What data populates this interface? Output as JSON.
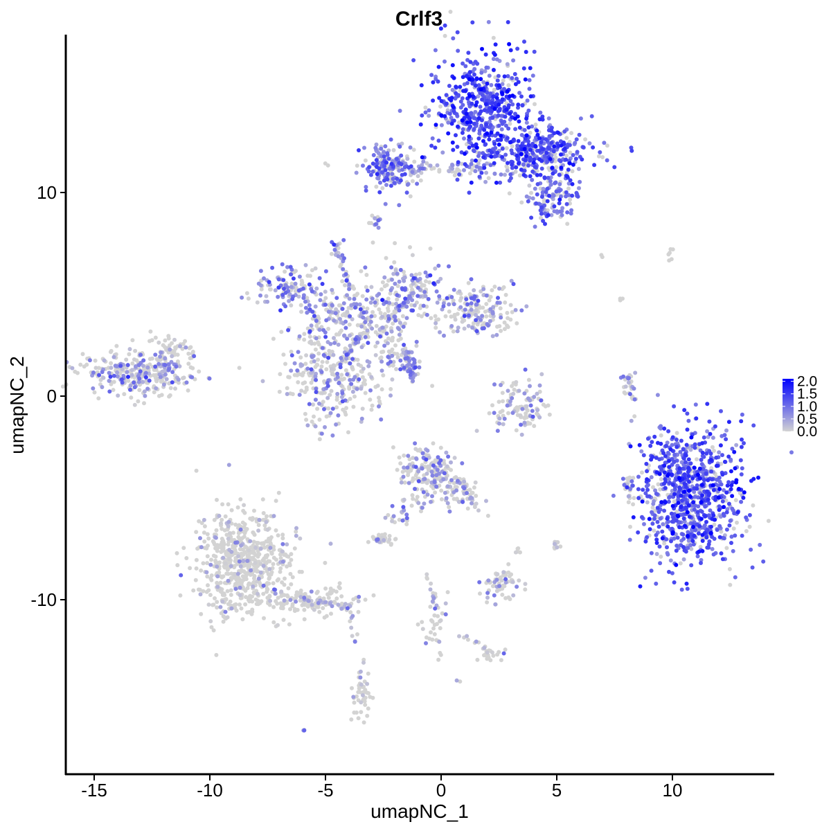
{
  "chart_data": {
    "type": "scatter",
    "title": "Crlf3",
    "xlabel": "umapNC_1",
    "ylabel": "umapNC_2",
    "xlim": [
      -16.5,
      14.3
    ],
    "ylim": [
      -17.8,
      17.5
    ],
    "x_ticks": [
      -15,
      -10,
      -5,
      0,
      5,
      10
    ],
    "x_tick_labels": [
      "-15",
      "-10",
      "-5",
      "0",
      "5",
      "10"
    ],
    "y_ticks": [
      -10,
      0,
      10
    ],
    "y_tick_labels": [
      "-10",
      "0",
      "10"
    ],
    "grid": false,
    "legend": {
      "placement": "right",
      "type": "colorbar",
      "ticks": [
        2.0,
        1.5,
        1.0,
        0.5,
        0.0
      ],
      "tick_labels": [
        "2.0",
        "1.5",
        "1.0",
        "0.5",
        "0.0"
      ],
      "range": [
        0.0,
        2.1
      ]
    },
    "color_scale": {
      "low": "#d3d3d3",
      "high": "#0000ff"
    },
    "clusters": [
      {
        "cx": 1.8,
        "cy": 14.2,
        "sx": 1.1,
        "sy": 1.4,
        "n": 520,
        "expr_mean": 1.3,
        "expr_frac": 0.9
      },
      {
        "cx": 4.3,
        "cy": 12.0,
        "sx": 1.1,
        "sy": 0.6,
        "n": 320,
        "expr_mean": 1.2,
        "expr_frac": 0.9
      },
      {
        "cx": 4.8,
        "cy": 9.8,
        "sx": 0.6,
        "sy": 0.6,
        "n": 120,
        "expr_mean": 0.9,
        "expr_frac": 0.75
      },
      {
        "cx": -2.2,
        "cy": 11.2,
        "sx": 0.6,
        "sy": 0.6,
        "n": 170,
        "expr_mean": 0.9,
        "expr_frac": 0.75
      },
      {
        "cx": 0.0,
        "cy": 11.2,
        "sx": 1.8,
        "sy": 0.25,
        "n": 90,
        "expr_mean": 0.6,
        "expr_frac": 0.5
      },
      {
        "cx": -2.8,
        "cy": 8.6,
        "sx": 0.15,
        "sy": 0.2,
        "n": 12,
        "expr_mean": 0.5,
        "expr_frac": 0.6
      },
      {
        "cx": -4.5,
        "cy": 7.3,
        "sx": 0.15,
        "sy": 0.25,
        "n": 15,
        "expr_mean": 0.7,
        "expr_frac": 0.7
      },
      {
        "cx": -6.5,
        "cy": 5.3,
        "sx": 0.8,
        "sy": 0.5,
        "n": 120,
        "expr_mean": 0.7,
        "expr_frac": 0.6
      },
      {
        "cx": -1.5,
        "cy": 5.0,
        "sx": 0.7,
        "sy": 0.9,
        "n": 160,
        "expr_mean": 0.7,
        "expr_frac": 0.6
      },
      {
        "cx": 1.5,
        "cy": 4.2,
        "sx": 0.8,
        "sy": 0.6,
        "n": 170,
        "expr_mean": 0.6,
        "expr_frac": 0.55
      },
      {
        "cx": -3.8,
        "cy": 3.8,
        "sx": 1.2,
        "sy": 0.8,
        "n": 220,
        "expr_mean": 0.5,
        "expr_frac": 0.45
      },
      {
        "cx": -4.8,
        "cy": 0.8,
        "sx": 1.0,
        "sy": 1.1,
        "n": 280,
        "expr_mean": 0.55,
        "expr_frac": 0.45
      },
      {
        "cx": -1.8,
        "cy": 1.8,
        "sx": 0.5,
        "sy": 0.6,
        "n": 50,
        "expr_mean": 0.5,
        "expr_frac": 0.45
      },
      {
        "cx": -13.0,
        "cy": 1.2,
        "sx": 1.2,
        "sy": 0.55,
        "n": 320,
        "expr_mean": 0.5,
        "expr_frac": 0.45
      },
      {
        "cx": -11.6,
        "cy": 2.3,
        "sx": 0.4,
        "sy": 0.3,
        "n": 40,
        "expr_mean": 0.4,
        "expr_frac": 0.3
      },
      {
        "cx": 3.4,
        "cy": -0.5,
        "sx": 0.6,
        "sy": 0.7,
        "n": 110,
        "expr_mean": 0.5,
        "expr_frac": 0.4
      },
      {
        "cx": 8.1,
        "cy": 0.3,
        "sx": 0.2,
        "sy": 0.5,
        "n": 18,
        "expr_mean": 0.5,
        "expr_frac": 0.5
      },
      {
        "cx": 10.8,
        "cy": -4.8,
        "sx": 1.15,
        "sy": 1.6,
        "n": 900,
        "expr_mean": 1.2,
        "expr_frac": 0.85
      },
      {
        "cx": 8.2,
        "cy": -4.5,
        "sx": 0.2,
        "sy": 0.4,
        "n": 25,
        "expr_mean": 0.4,
        "expr_frac": 0.4
      },
      {
        "cx": -0.6,
        "cy": -3.8,
        "sx": 0.6,
        "sy": 0.7,
        "n": 180,
        "expr_mean": 0.5,
        "expr_frac": 0.45
      },
      {
        "cx": 0.9,
        "cy": -4.8,
        "sx": 0.4,
        "sy": 0.5,
        "n": 50,
        "expr_mean": 0.4,
        "expr_frac": 0.4
      },
      {
        "cx": -2.5,
        "cy": -7.0,
        "sx": 0.3,
        "sy": 0.2,
        "n": 30,
        "expr_mean": 0.4,
        "expr_frac": 0.4
      },
      {
        "cx": -1.6,
        "cy": -6.0,
        "sx": 0.3,
        "sy": 0.4,
        "n": 15,
        "expr_mean": 0.5,
        "expr_frac": 0.5
      },
      {
        "cx": 2.4,
        "cy": -9.3,
        "sx": 0.5,
        "sy": 0.35,
        "n": 70,
        "expr_mean": 0.4,
        "expr_frac": 0.35
      },
      {
        "cx": 5.0,
        "cy": -7.3,
        "sx": 0.1,
        "sy": 0.15,
        "n": 10,
        "expr_mean": 0.3,
        "expr_frac": 0.3
      },
      {
        "cx": 3.3,
        "cy": -7.6,
        "sx": 0.1,
        "sy": 0.1,
        "n": 5,
        "expr_mean": 0.5,
        "expr_frac": 0.5
      },
      {
        "cx": -8.6,
        "cy": -8.3,
        "sx": 1.0,
        "sy": 1.3,
        "n": 650,
        "expr_mean": 0.3,
        "expr_frac": 0.15
      },
      {
        "cx": -5.6,
        "cy": -10.0,
        "sx": 0.9,
        "sy": 0.35,
        "n": 120,
        "expr_mean": 0.3,
        "expr_frac": 0.15
      },
      {
        "cx": -0.3,
        "cy": -11.1,
        "sx": 0.25,
        "sy": 0.7,
        "n": 35,
        "expr_mean": 0.3,
        "expr_frac": 0.25
      },
      {
        "cx": 2.2,
        "cy": -12.7,
        "sx": 0.3,
        "sy": 0.15,
        "n": 20,
        "expr_mean": 0.3,
        "expr_frac": 0.2
      },
      {
        "cx": -3.4,
        "cy": -14.7,
        "sx": 0.2,
        "sy": 0.6,
        "n": 40,
        "expr_mean": 0.3,
        "expr_frac": 0.2
      },
      {
        "cx": -6.0,
        "cy": -16.4,
        "sx": 0.05,
        "sy": 0.05,
        "n": 3,
        "expr_mean": 0.7,
        "expr_frac": 0.9
      },
      {
        "cx": 9.8,
        "cy": 6.8,
        "sx": 0.15,
        "sy": 0.15,
        "n": 6,
        "expr_mean": 0.1,
        "expr_frac": 0.1
      },
      {
        "cx": 7.8,
        "cy": 4.8,
        "sx": 0.1,
        "sy": 0.1,
        "n": 3,
        "expr_mean": 0.3,
        "expr_frac": 0.3
      },
      {
        "cx": 7.0,
        "cy": 6.9,
        "sx": 0.05,
        "sy": 0.05,
        "n": 2,
        "expr_mean": 0.3,
        "expr_frac": 0.3
      },
      {
        "cx": 0.7,
        "cy": -14.0,
        "sx": 0.05,
        "sy": 0.05,
        "n": 2,
        "expr_mean": 0.5,
        "expr_frac": 0.5
      }
    ],
    "trails": [
      {
        "from": [
          -1.6,
          2.0
        ],
        "to": [
          -1.2,
          0.7
        ],
        "n": 25,
        "expr_mean": 0.8
      },
      {
        "from": [
          -1.5,
          2.0
        ],
        "to": [
          -1.1,
          0.8
        ],
        "n": 15,
        "expr_mean": 0.8
      },
      {
        "from": [
          -4.4,
          6.8
        ],
        "to": [
          -3.7,
          4.4
        ],
        "n": 20,
        "expr_mean": 0.6
      },
      {
        "from": [
          -2.6,
          3.2
        ],
        "to": [
          -1.0,
          5.5
        ],
        "n": 30,
        "expr_mean": 0.7
      },
      {
        "from": [
          -3.5,
          3.0
        ],
        "to": [
          -4.2,
          1.8
        ],
        "n": 25,
        "expr_mean": 0.7
      },
      {
        "from": [
          -1.3,
          1.9
        ],
        "to": [
          -1.0,
          1.3
        ],
        "n": 10,
        "expr_mean": 0.8
      },
      {
        "from": [
          0.8,
          -4.0
        ],
        "to": [
          1.4,
          -5.4
        ],
        "n": 20,
        "expr_mean": 0.5
      },
      {
        "from": [
          -1.6,
          -5.0
        ],
        "to": [
          -1.6,
          -6.2
        ],
        "n": 8,
        "expr_mean": 0.5
      },
      {
        "from": [
          -0.3,
          -10.2
        ],
        "to": [
          -0.6,
          -8.7
        ],
        "n": 12,
        "expr_mean": 0.3
      },
      {
        "from": [
          0.8,
          -11.8
        ],
        "to": [
          1.8,
          -12.3
        ],
        "n": 10,
        "expr_mean": 0.3
      },
      {
        "from": [
          -3.5,
          -14.2
        ],
        "to": [
          -3.5,
          -13.0
        ],
        "n": 6,
        "expr_mean": 0.3
      },
      {
        "from": [
          -6.5,
          -9.8
        ],
        "to": [
          -4.0,
          -10.4
        ],
        "n": 30,
        "expr_mean": 0.3
      },
      {
        "from": [
          8.0,
          1.0
        ],
        "to": [
          8.4,
          -0.4
        ],
        "n": 12,
        "expr_mean": 0.6
      },
      {
        "from": [
          -3.8,
          -11.6
        ],
        "to": [
          -3.8,
          -12.1
        ],
        "n": 4,
        "expr_mean": 0.2
      },
      {
        "from": [
          -4.0,
          -10.4
        ],
        "to": [
          -3.8,
          -12.0
        ],
        "n": 4,
        "expr_mean": 0.2
      }
    ]
  }
}
